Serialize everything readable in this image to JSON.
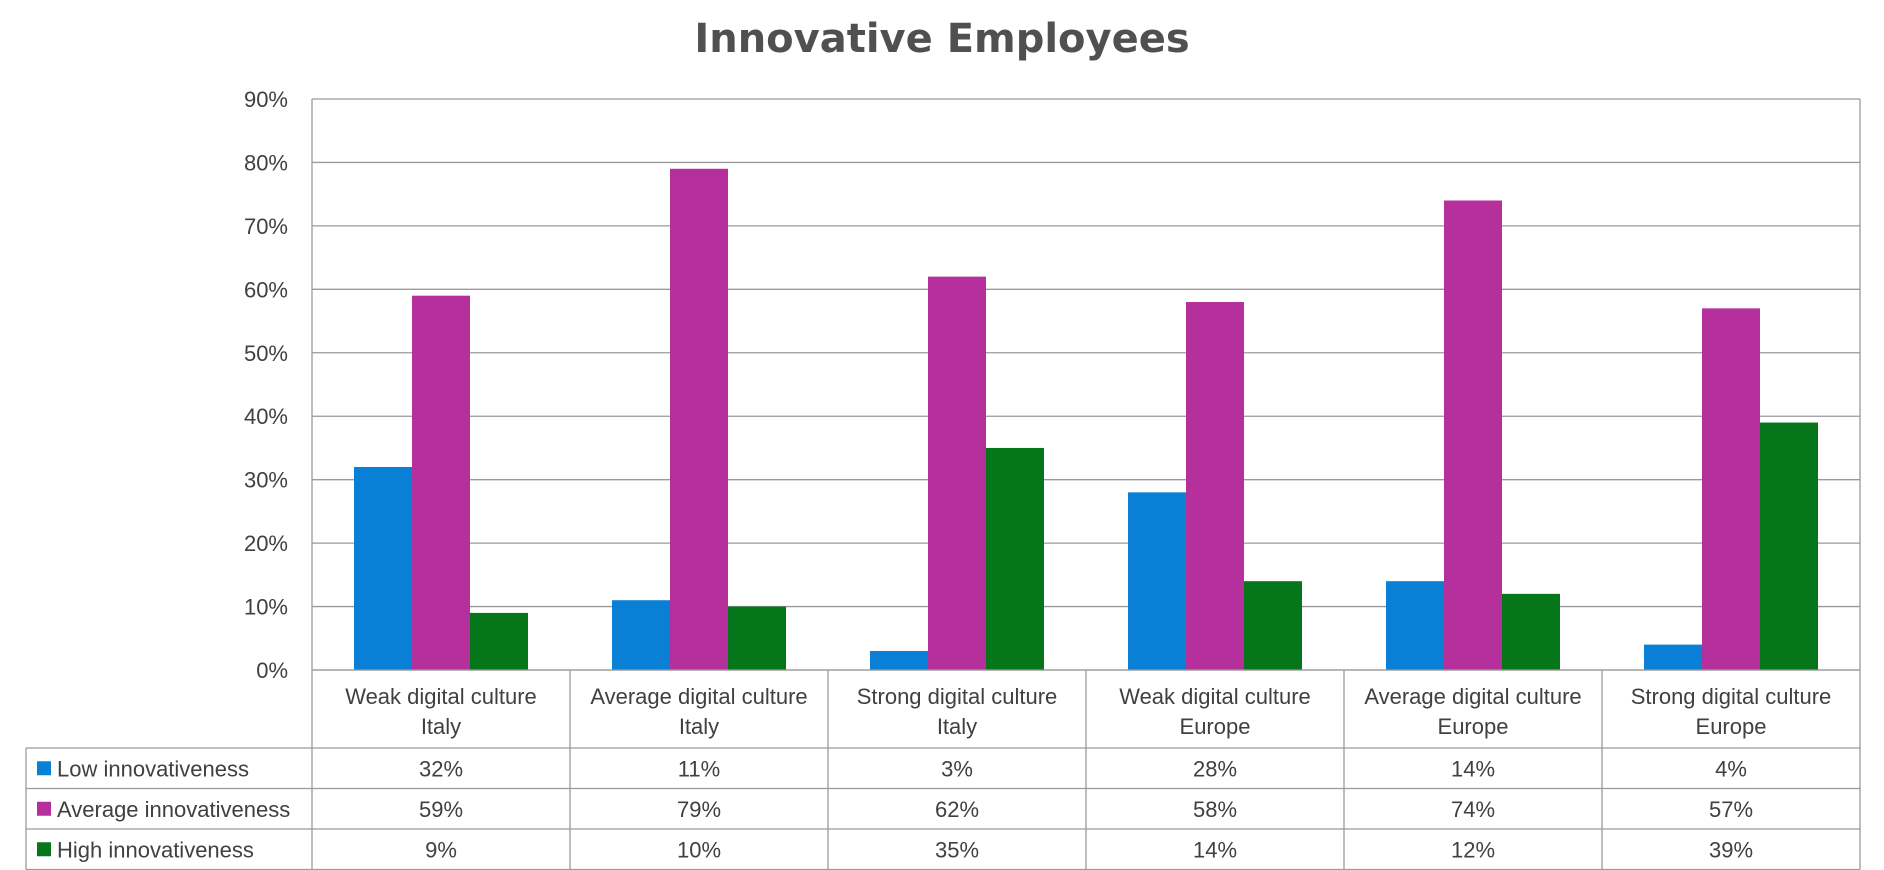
{
  "chart_data": {
    "type": "bar",
    "title": "Innovative Employees",
    "categories": [
      [
        "Weak digital culture",
        "Italy"
      ],
      [
        "Average digital culture",
        "Italy"
      ],
      [
        "Strong digital culture",
        "Italy"
      ],
      [
        "Weak digital culture",
        "Europe"
      ],
      [
        "Average digital culture",
        "Europe"
      ],
      [
        "Strong digital culture",
        "Europe"
      ]
    ],
    "series": [
      {
        "name": "Low innovativeness",
        "color": "#0a7fd6",
        "values": [
          32,
          11,
          3,
          28,
          14,
          4
        ],
        "table_labels": [
          "32%",
          "11%",
          "3%",
          "28%",
          "14%",
          "4%"
        ]
      },
      {
        "name": "Average innovativeness",
        "color": "#b5309c",
        "values": [
          59,
          79,
          62,
          58,
          74,
          57
        ],
        "table_labels": [
          "59%",
          "79%",
          "62%",
          "58%",
          "74%",
          "57%"
        ]
      },
      {
        "name": "High innovativeness",
        "color": "#06761b",
        "values": [
          9,
          10,
          35,
          14,
          12,
          39
        ],
        "table_labels": [
          "9%",
          "10%",
          "35%",
          "14%",
          "12%",
          "39%"
        ]
      }
    ],
    "y_ticks": [
      "0%",
      "10%",
      "20%",
      "30%",
      "40%",
      "50%",
      "60%",
      "70%",
      "80%",
      "90%"
    ],
    "ylim": [
      0,
      90
    ],
    "grid": true,
    "legend": "data-table"
  }
}
